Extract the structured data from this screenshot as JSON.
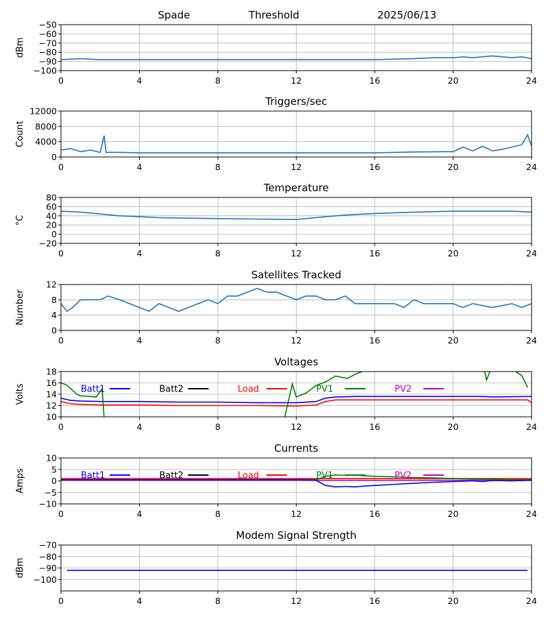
{
  "header": {
    "station": "Spade",
    "mode": "Threshold",
    "date": "2025/06/13"
  },
  "colors": {
    "series_default": "#1f77b4",
    "grid": "#b0b0b0",
    "Batt1": "#0000ff",
    "Batt2": "#000000",
    "Load": "#ff0000",
    "PV1": "#008000",
    "PV2": "#c000c0"
  },
  "chart_data": [
    {
      "type": "line",
      "title": "",
      "xlabel": "",
      "ylabel": "dBm",
      "xlim": [
        0,
        24
      ],
      "xticks": [
        "0",
        "4",
        "8",
        "12",
        "16",
        "20",
        "24"
      ],
      "ylim": [
        -100,
        -50
      ],
      "yticks": [
        "−100",
        "−90",
        "−80",
        "−70",
        "−60",
        "−50"
      ],
      "grid": true,
      "series": [
        {
          "color": "#1f77b4",
          "x": [
            0,
            1,
            2,
            4,
            6,
            8,
            10,
            12,
            14,
            16,
            18,
            19,
            20,
            20.5,
            21,
            22,
            23,
            23.5,
            24
          ],
          "y": [
            -88,
            -87,
            -88,
            -88,
            -88,
            -88,
            -88,
            -88,
            -88,
            -88,
            -87,
            -86,
            -86,
            -85,
            -86,
            -84,
            -86,
            -85,
            -87
          ]
        }
      ]
    },
    {
      "type": "line",
      "title": "Triggers/sec",
      "xlabel": "",
      "ylabel": "Count",
      "xlim": [
        0,
        24
      ],
      "xticks": [
        "0",
        "4",
        "8",
        "12",
        "16",
        "20",
        "24"
      ],
      "ylim": [
        0,
        12000
      ],
      "yticks": [
        "0",
        "4000",
        "8000",
        "12000"
      ],
      "grid": true,
      "series": [
        {
          "color": "#1f77b4",
          "x": [
            0,
            0.5,
            1,
            1.5,
            2,
            2.2,
            2.3,
            3,
            4,
            6,
            8,
            10,
            12,
            14,
            16,
            18,
            20,
            20.5,
            21,
            21.5,
            22,
            22.5,
            23,
            23.5,
            23.8,
            24
          ],
          "y": [
            1800,
            2200,
            1400,
            1800,
            1200,
            5600,
            1200,
            1200,
            1100,
            1100,
            1100,
            1100,
            1100,
            1100,
            1100,
            1300,
            1400,
            2600,
            1600,
            2800,
            1600,
            2000,
            2600,
            3200,
            5800,
            2800
          ]
        }
      ]
    },
    {
      "type": "line",
      "title": "Temperature",
      "xlabel": "",
      "ylabel": "°C",
      "xlim": [
        0,
        24
      ],
      "xticks": [
        "0",
        "4",
        "8",
        "12",
        "16",
        "20",
        "24"
      ],
      "ylim": [
        -20,
        80
      ],
      "yticks": [
        "−20",
        "0",
        "20",
        "40",
        "60",
        "80"
      ],
      "grid": true,
      "series": [
        {
          "color": "#1f77b4",
          "x": [
            0,
            1,
            2,
            3,
            4,
            5,
            6,
            8,
            10,
            12,
            13,
            14,
            15,
            16,
            18,
            20,
            22,
            23,
            24
          ],
          "y": [
            50,
            48,
            44,
            40,
            38,
            36,
            35,
            34,
            33,
            32,
            36,
            40,
            43,
            45,
            48,
            50,
            50,
            50,
            48
          ]
        }
      ]
    },
    {
      "type": "line",
      "title": "Satellites Tracked",
      "xlabel": "",
      "ylabel": "Number",
      "xlim": [
        0,
        24
      ],
      "xticks": [
        "0",
        "4",
        "8",
        "12",
        "16",
        "20",
        "24"
      ],
      "ylim": [
        0,
        12
      ],
      "yticks": [
        "0",
        "4",
        "8",
        "12"
      ],
      "grid": true,
      "series": [
        {
          "color": "#1f77b4",
          "x": [
            0,
            0.3,
            0.6,
            1,
            1.5,
            2,
            2.4,
            3,
            3.5,
            4,
            4.5,
            5,
            5.5,
            6,
            6.5,
            7,
            7.5,
            8,
            8.5,
            9,
            9.5,
            10,
            10.5,
            11,
            11.5,
            12,
            12.5,
            13,
            13.5,
            14,
            14.5,
            15,
            16,
            17,
            17.5,
            18,
            18.5,
            19,
            20,
            20.5,
            21,
            22,
            23,
            23.5,
            24
          ],
          "y": [
            7,
            5,
            6,
            8,
            8,
            8,
            9,
            8,
            7,
            6,
            5,
            7,
            6,
            5,
            6,
            7,
            8,
            7,
            9,
            9,
            10,
            11,
            10,
            10,
            9,
            8,
            9,
            9,
            8,
            8,
            9,
            7,
            7,
            7,
            6,
            8,
            7,
            7,
            7,
            6,
            7,
            6,
            7,
            6,
            7
          ]
        }
      ]
    },
    {
      "type": "line",
      "title": "Voltages",
      "xlabel": "",
      "ylabel": "Volts",
      "xlim": [
        0,
        24
      ],
      "xticks": [
        "0",
        "4",
        "8",
        "12",
        "16",
        "20",
        "24"
      ],
      "ylim": [
        10,
        18
      ],
      "yticks": [
        "10",
        "12",
        "14",
        "16",
        "18"
      ],
      "grid": true,
      "legend": [
        "Batt1",
        "Batt2",
        "Load",
        "PV1",
        "PV2"
      ],
      "legend_position": "top",
      "series": [
        {
          "name": "Batt1",
          "color": "#0000ff",
          "x": [
            0,
            0.5,
            1,
            2,
            4,
            6,
            8,
            10,
            12,
            13,
            13.5,
            14,
            15,
            16,
            18,
            20,
            21.5,
            22,
            24
          ],
          "y": [
            13.3,
            12.9,
            12.8,
            12.7,
            12.7,
            12.6,
            12.6,
            12.5,
            12.5,
            12.7,
            13.3,
            13.5,
            13.6,
            13.6,
            13.6,
            13.6,
            13.6,
            13.5,
            13.6
          ]
        },
        {
          "name": "Load",
          "color": "#ff0000",
          "x": [
            0,
            0.5,
            1,
            2,
            4,
            6,
            8,
            10,
            12,
            13,
            13.5,
            14,
            15,
            16,
            18,
            20,
            22,
            23.8,
            24
          ],
          "y": [
            12.7,
            12.3,
            12.2,
            12.1,
            12.1,
            12.0,
            12.0,
            12.0,
            11.9,
            12.1,
            12.7,
            13.0,
            13.0,
            13.0,
            13.0,
            13.0,
            13.0,
            13.0,
            12.5
          ]
        },
        {
          "name": "PV1",
          "color": "#008000",
          "x": [
            0,
            0.3,
            0.8,
            1,
            1.5,
            1.8,
            2.1,
            2.2
          ],
          "y": [
            16.0,
            15.6,
            14.0,
            13.7,
            13.6,
            13.5,
            15.0,
            9.8
          ]
        },
        {
          "name": "PV1",
          "color": "#008000",
          "x": [
            11.4,
            11.8,
            12,
            12.5,
            13,
            13.5,
            14,
            14.6,
            15,
            15.5
          ],
          "y": [
            9.8,
            15.8,
            13.5,
            14.2,
            15.5,
            16.2,
            17.2,
            16.8,
            17.5,
            18.2
          ]
        },
        {
          "name": "PV1",
          "color": "#008000",
          "x": [
            21.6,
            21.7,
            21.9
          ],
          "y": [
            18.2,
            16.5,
            18.2
          ]
        },
        {
          "name": "PV1",
          "color": "#008000",
          "x": [
            23.1,
            23.5,
            23.8
          ],
          "y": [
            18.2,
            17.3,
            15.2
          ]
        }
      ]
    },
    {
      "type": "line",
      "title": "Currents",
      "xlabel": "",
      "ylabel": "Amps",
      "xlim": [
        0,
        24
      ],
      "xticks": [
        "0",
        "4",
        "8",
        "12",
        "16",
        "20",
        "24"
      ],
      "ylim": [
        -10,
        10
      ],
      "yticks": [
        "−10",
        "−5",
        "0",
        "5",
        "10"
      ],
      "grid": true,
      "legend": [
        "Batt1",
        "Batt2",
        "Load",
        "PV1",
        "PV2"
      ],
      "legend_position": "top",
      "series": [
        {
          "name": "Load",
          "color": "#ff0000",
          "x": [
            0,
            4,
            8,
            12,
            16,
            20,
            24
          ],
          "y": [
            1,
            1,
            1,
            1,
            1,
            1,
            1
          ]
        },
        {
          "name": "PV2",
          "color": "#c000c0",
          "x": [
            0,
            4,
            8,
            12,
            16,
            20,
            24
          ],
          "y": [
            0.3,
            0.3,
            0.3,
            0.3,
            0.3,
            0.3,
            0.3
          ]
        },
        {
          "name": "PV1",
          "color": "#008000",
          "x": [
            0,
            4,
            8,
            12,
            13,
            13.5,
            14,
            14.5,
            15,
            15.5,
            16,
            17,
            18,
            19,
            20,
            21,
            22,
            23,
            24
          ],
          "y": [
            0.5,
            0.5,
            0.5,
            0.5,
            0.5,
            2,
            2.6,
            2.4,
            2.6,
            2.2,
            2,
            1.8,
            1.5,
            1.3,
            1,
            0.8,
            0.7,
            0.5,
            0.5
          ]
        },
        {
          "name": "Batt1",
          "color": "#0000ff",
          "x": [
            0,
            4,
            8,
            12,
            13,
            13.5,
            14,
            14.5,
            15,
            15.5,
            16,
            17,
            18,
            19,
            20,
            21,
            21.5,
            22,
            23,
            24
          ],
          "y": [
            0.5,
            0.5,
            0.5,
            0.5,
            0.3,
            -2,
            -2.6,
            -2.4,
            -2.6,
            -2.2,
            -2,
            -1.5,
            -1,
            -0.6,
            -0.3,
            0,
            -0.3,
            0.2,
            0,
            0.3
          ]
        }
      ]
    },
    {
      "type": "line",
      "title": "Modem Signal Strength",
      "xlabel": "",
      "ylabel": "dBm",
      "xlim": [
        0,
        24
      ],
      "xticks": [
        "0",
        "4",
        "8",
        "12",
        "16",
        "20",
        "24"
      ],
      "ylim": [
        -110,
        -70
      ],
      "yticks": [
        "−100",
        "−90",
        "−80",
        "−70"
      ],
      "grid": true,
      "series": [
        {
          "color": "#0000ff",
          "x": [
            0.3,
            23.8
          ],
          "y": [
            -92,
            -92
          ]
        }
      ]
    }
  ]
}
